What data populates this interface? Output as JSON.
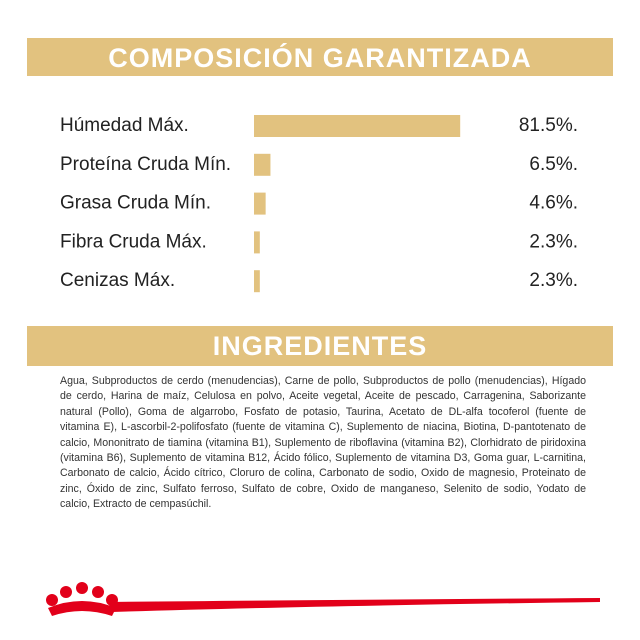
{
  "chart_data": {
    "type": "bar",
    "orientation": "horizontal",
    "title": "COMPOSICIÓN GARANTIZADA",
    "categories": [
      "Húmedad Máx.",
      "Proteína Cruda Mín.",
      "Grasa Cruda Mín.",
      "Fibra Cruda Máx.",
      "Cenizas Máx."
    ],
    "values": [
      81.5,
      6.5,
      4.6,
      2.3,
      2.3
    ],
    "value_labels": [
      "81.5%.",
      "6.5%.",
      "4.6%.",
      "2.3%.",
      "2.3%."
    ],
    "color": "#e2c27f"
  },
  "ingredients": {
    "title": "INGREDIENTES",
    "text": "Agua, Subproductos de cerdo (menudencias), Carne de pollo, Subproductos de pollo (menudencias), Hígado de cerdo, Harina de maíz, Celulosa en polvo, Aceite vegetal, Aceite de pescado, Carragenina, Saborizante natural (Pollo), Goma de algarrobo, Fosfato de potasio, Taurina, Acetato de DL-alfa tocoferol (fuente de vitamina E), L-ascorbil-2-polifosfato (fuente de vitamina C), Suplemento de niacina, Biotina, D-pantotenato de calcio, Mononitrato de tiamina (vitamina B1), Suplemento de riboflavina (vitamina B2), Clorhidrato de piridoxina (vitamina B6), Suplemento de vitamina B12, Ácido fólico, Suplemento de vitamina D3, Goma guar, L-carnitina, Carbonato de calcio, Ácido cítrico, Cloruro de colina, Carbonato de sodio, Oxido de magnesio, Proteinato de zinc, Óxido de zinc, Sulfato ferroso, Sulfato de cobre, Oxido de manganeso, Selenito de sodio, Yodato de calcio, Extracto de cempasúchil."
  }
}
